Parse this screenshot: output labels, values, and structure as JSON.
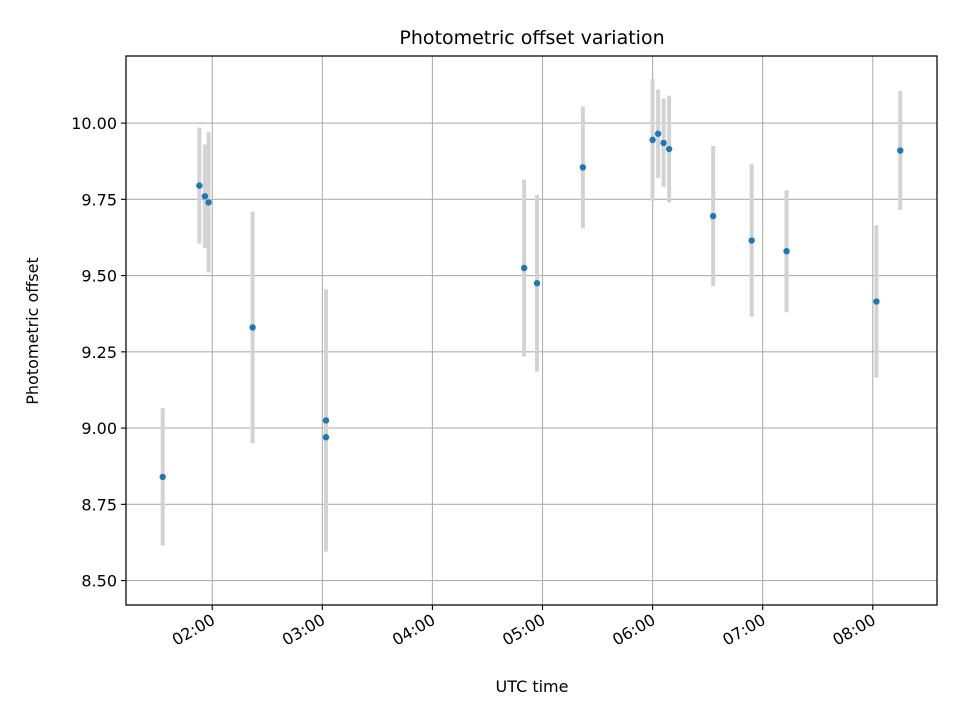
{
  "chart_data": {
    "type": "scatter",
    "title": "Photometric offset variation",
    "xlabel": "UTC time",
    "ylabel": "Photometric offset",
    "x_ticks": [
      "02:00",
      "03:00",
      "04:00",
      "05:00",
      "06:00",
      "07:00",
      "08:00"
    ],
    "y_ticks": [
      "8.50",
      "8.75",
      "9.00",
      "9.25",
      "9.50",
      "9.75",
      "10.00"
    ],
    "xlim": [
      "01:13",
      "08:35"
    ],
    "ylim": [
      8.42,
      10.22
    ],
    "grid": true,
    "colors": {
      "points": "#1f77b4",
      "errorbars": "#d3d3d3",
      "grid": "#b0b0b0"
    },
    "series": [
      {
        "points": [
          {
            "x": "01:33",
            "y": 8.84,
            "yerr": 0.225
          },
          {
            "x": "01:53",
            "y": 9.795,
            "yerr": 0.19
          },
          {
            "x": "01:56",
            "y": 9.76,
            "yerr": 0.17
          },
          {
            "x": "01:58",
            "y": 9.74,
            "yerr": 0.23
          },
          {
            "x": "02:22",
            "y": 9.33,
            "yerr": 0.38
          },
          {
            "x": "03:02",
            "y": 9.025,
            "yerr": 0.43
          },
          {
            "x": "03:02",
            "y": 8.97,
            "yerr": 0.37
          },
          {
            "x": "04:50",
            "y": 9.525,
            "yerr": 0.29
          },
          {
            "x": "04:57",
            "y": 9.475,
            "yerr": 0.29
          },
          {
            "x": "05:22",
            "y": 9.855,
            "yerr": 0.2
          },
          {
            "x": "06:00",
            "y": 9.945,
            "yerr": 0.2
          },
          {
            "x": "06:03",
            "y": 9.965,
            "yerr": 0.145
          },
          {
            "x": "06:06",
            "y": 9.935,
            "yerr": 0.145
          },
          {
            "x": "06:09",
            "y": 9.915,
            "yerr": 0.175
          },
          {
            "x": "06:33",
            "y": 9.695,
            "yerr": 0.23
          },
          {
            "x": "06:54",
            "y": 9.615,
            "yerr": 0.25
          },
          {
            "x": "07:13",
            "y": 9.58,
            "yerr": 0.2
          },
          {
            "x": "08:02",
            "y": 9.415,
            "yerr": 0.25
          },
          {
            "x": "08:15",
            "y": 9.91,
            "yerr": 0.195
          }
        ]
      }
    ]
  }
}
